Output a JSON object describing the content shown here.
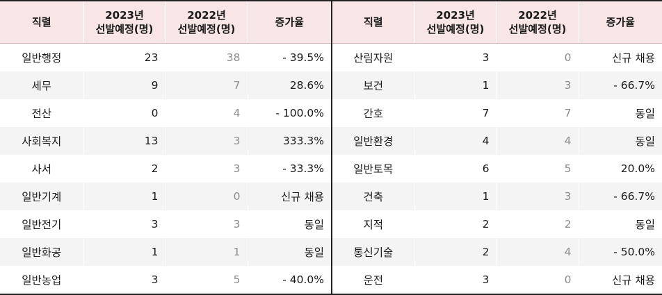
{
  "headers": {
    "job": "직렬",
    "y2023_line1": "2023년",
    "y2023_line2": "선발예정(명)",
    "y2022_line1": "2022년",
    "y2022_line2": "선발예정(명)",
    "rate": "증가율"
  },
  "left_rows": [
    {
      "job": "일반행정",
      "y2023": "23",
      "y2022": "38",
      "rate": "- 39.5%"
    },
    {
      "job": "세무",
      "y2023": "9",
      "y2022": "7",
      "rate": "28.6%"
    },
    {
      "job": "전산",
      "y2023": "0",
      "y2022": "4",
      "rate": "- 100.0%"
    },
    {
      "job": "사회복지",
      "y2023": "13",
      "y2022": "3",
      "rate": "333.3%"
    },
    {
      "job": "사서",
      "y2023": "2",
      "y2022": "3",
      "rate": "- 33.3%"
    },
    {
      "job": "일반기계",
      "y2023": "1",
      "y2022": "0",
      "rate": "신규 채용"
    },
    {
      "job": "일반전기",
      "y2023": "3",
      "y2022": "3",
      "rate": "동일"
    },
    {
      "job": "일반화공",
      "y2023": "1",
      "y2022": "1",
      "rate": "동일"
    },
    {
      "job": "일반농업",
      "y2023": "3",
      "y2022": "5",
      "rate": "- 40.0%"
    }
  ],
  "right_rows": [
    {
      "job": "산림자원",
      "y2023": "3",
      "y2022": "0",
      "rate": "신규 채용"
    },
    {
      "job": "보건",
      "y2023": "1",
      "y2022": "3",
      "rate": "- 66.7%"
    },
    {
      "job": "간호",
      "y2023": "7",
      "y2022": "7",
      "rate": "동일"
    },
    {
      "job": "일반환경",
      "y2023": "4",
      "y2022": "4",
      "rate": "동일"
    },
    {
      "job": "일반토목",
      "y2023": "6",
      "y2022": "5",
      "rate": "20.0%"
    },
    {
      "job": "건축",
      "y2023": "1",
      "y2022": "3",
      "rate": "- 66.7%"
    },
    {
      "job": "지적",
      "y2023": "2",
      "y2022": "2",
      "rate": "동일"
    },
    {
      "job": "통신기술",
      "y2023": "2",
      "y2022": "4",
      "rate": "- 50.0%"
    },
    {
      "job": "운전",
      "y2023": "3",
      "y2022": "0",
      "rate": "신규 채용"
    }
  ],
  "colors": {
    "header_bg": "#f8e6e7",
    "stripe_bg": "#f4f4f4",
    "prev_year_text": "#8c8c8c"
  }
}
